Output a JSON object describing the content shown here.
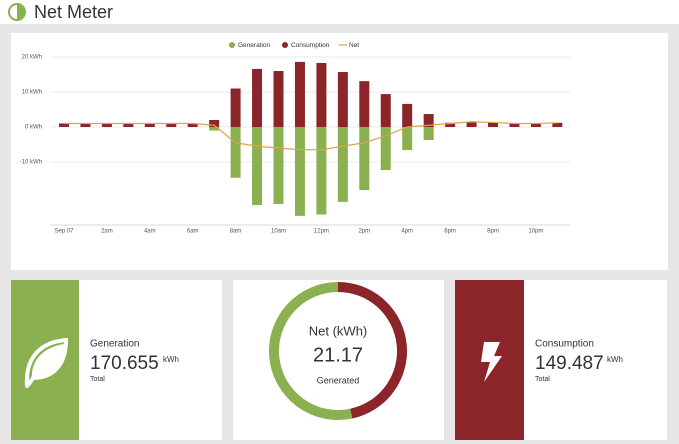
{
  "header": {
    "title": "Net Meter"
  },
  "chart_data": {
    "type": "bar",
    "categories": [
      "Sep 07",
      null,
      "2am",
      null,
      "4am",
      null,
      "6am",
      null,
      "8am",
      null,
      "10am",
      null,
      "12pm",
      null,
      "2pm",
      null,
      "4pm",
      null,
      "6pm",
      null,
      "8pm",
      null,
      "10pm",
      null
    ],
    "series": [
      {
        "name": "Generation",
        "color": "#8ab04f",
        "values": [
          0,
          0,
          0,
          0,
          0,
          0,
          0,
          -1,
          -14.5,
          -22.3,
          -22,
          -25.4,
          -25,
          -21.4,
          -18,
          -12.3,
          -6.6,
          -3.7,
          0,
          0,
          0,
          0,
          0,
          0
        ]
      },
      {
        "name": "Consumption",
        "color": "#8b2529",
        "values": [
          1,
          1,
          1,
          1,
          1,
          1,
          1,
          2,
          11,
          16.6,
          16,
          18.6,
          18.3,
          15.7,
          13.1,
          9.4,
          6.6,
          3.7,
          1.2,
          1.5,
          1.3,
          1,
          1,
          1.2
        ]
      },
      {
        "name": "Net",
        "color": "#d9a54a",
        "type": "line",
        "values": [
          1,
          1,
          1,
          1,
          1,
          1,
          1,
          0.5,
          -4.5,
          -5.5,
          -6,
          -6.5,
          -6.5,
          -5.5,
          -4.5,
          -2.5,
          0,
          0.5,
          1,
          1.5,
          1.3,
          1,
          1,
          1.2
        ]
      }
    ],
    "ylim": [
      -28,
      21
    ],
    "yticks": [
      {
        "value": 20,
        "label": "20 kWh"
      },
      {
        "value": 10,
        "label": "10 kWh"
      },
      {
        "value": 0,
        "label": "0 kWh"
      },
      {
        "value": -10,
        "label": "-10 kWh"
      }
    ],
    "grid": true
  },
  "cards": {
    "generation": {
      "label": "Generation",
      "value": 170.655,
      "unit": "kWh",
      "note": "Total",
      "color": "#8ab04f"
    },
    "net": {
      "label": "Net (kWh)",
      "value": 21.17,
      "note": "Generated"
    },
    "consumption": {
      "label": "Consumption",
      "value": 149.487,
      "unit": "kWh",
      "note": "Total",
      "color": "#8b2529"
    }
  }
}
